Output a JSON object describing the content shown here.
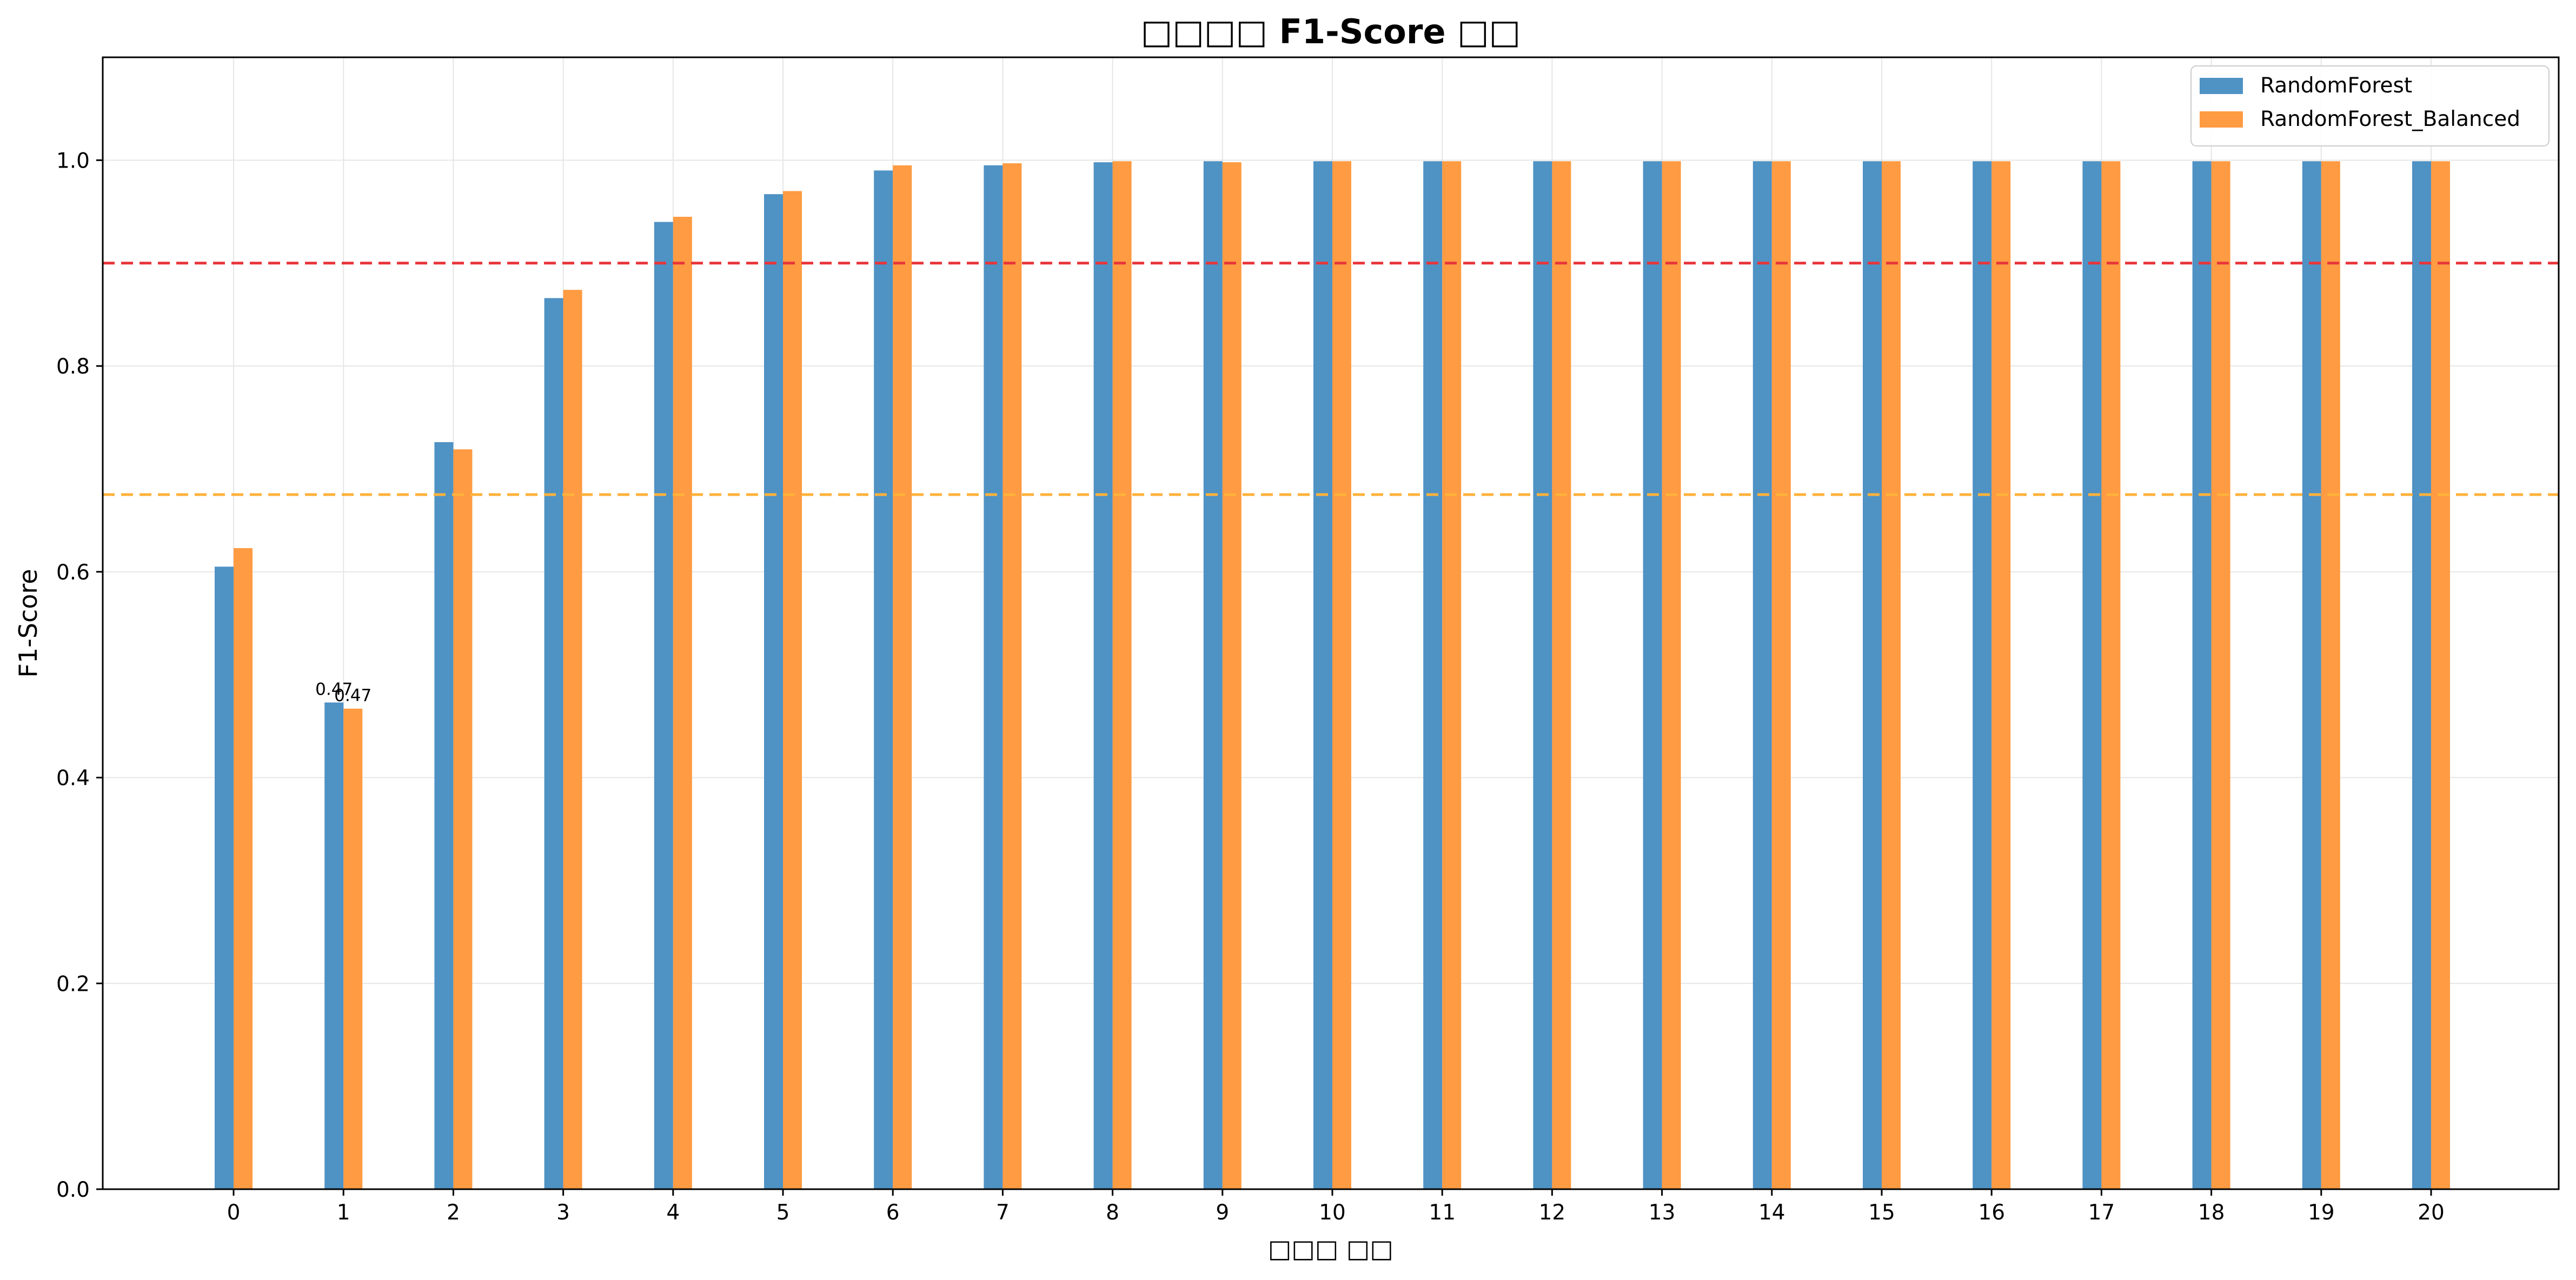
{
  "chart_data": {
    "type": "bar",
    "title": "□□□□ F1-Score □□",
    "xlabel": "□□□ □□",
    "ylabel": "F1-Score",
    "categories": [
      "0",
      "1",
      "2",
      "3",
      "4",
      "5",
      "6",
      "7",
      "8",
      "9",
      "10",
      "11",
      "12",
      "13",
      "14",
      "15",
      "16",
      "17",
      "18",
      "19",
      "20"
    ],
    "series": [
      {
        "name": "RandomForest",
        "color": "#4f92c4",
        "values": [
          0.605,
          0.473,
          0.726,
          0.866,
          0.94,
          0.967,
          0.99,
          0.995,
          0.998,
          0.999,
          0.999,
          0.999,
          0.999,
          0.999,
          0.999,
          0.999,
          0.999,
          0.999,
          0.999,
          0.999,
          0.999
        ]
      },
      {
        "name": "RandomForest_Balanced",
        "color": "#ff9b42",
        "values": [
          0.623,
          0.467,
          0.719,
          0.874,
          0.945,
          0.97,
          0.995,
          0.997,
          0.999,
          0.998,
          0.999,
          0.999,
          0.999,
          0.999,
          0.999,
          0.999,
          0.999,
          0.999,
          0.999,
          0.999,
          0.999
        ]
      }
    ],
    "reference_lines": [
      {
        "value": 0.9,
        "color": "#e8353a",
        "style": "dashed"
      },
      {
        "value": 0.675,
        "color": "#ffb23a",
        "style": "dashed"
      }
    ],
    "data_labels": [
      {
        "category": "1",
        "series": 0,
        "text": "0.47"
      },
      {
        "category": "1",
        "series": 1,
        "text": "0.47"
      }
    ],
    "yticks": [
      "0.0",
      "0.2",
      "0.4",
      "0.6",
      "0.8",
      "1.0"
    ],
    "ylim": [
      0,
      1.1
    ],
    "grid": true,
    "legend_position": "top-right"
  }
}
